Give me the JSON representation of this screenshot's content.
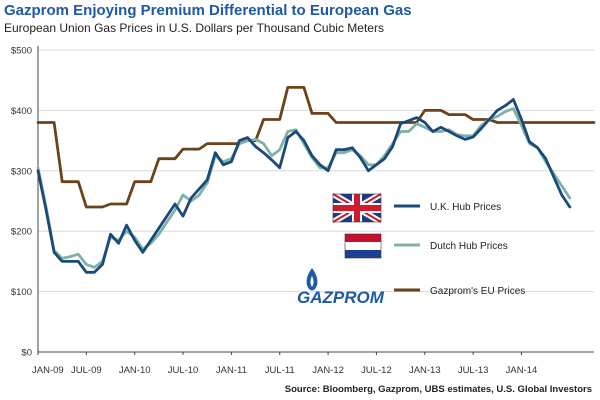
{
  "header": {
    "title": "Gazprom Enjoying Premium Differential to European Gas",
    "subtitle": "European Union Gas Prices in U.S. Dollars per Thousand Cubic Meters"
  },
  "source": "Source: Bloomberg, Gazprom, UBS estimates, U.S. Global Investors",
  "logo": {
    "text": "GAZPROM",
    "icon": "gazprom-flame-icon",
    "color": "#1e5aa3"
  },
  "chart_data": {
    "type": "line",
    "title": "Gazprom Enjoying Premium Differential to European Gas",
    "subtitle": "European Union Gas Prices in U.S. Dollars per Thousand Cubic Meters",
    "xlabel": "",
    "ylabel": "",
    "ylim": [
      0,
      500
    ],
    "y_ticks": [
      0,
      100,
      200,
      300,
      400,
      500
    ],
    "y_tick_labels": [
      "$0",
      "$100",
      "$200",
      "$300",
      "$400",
      "$500"
    ],
    "x_start": "2009-01",
    "x_end": "2014-10",
    "x_tick_labels": [
      "JAN-09",
      "JUL-09",
      "JAN-10",
      "JUL-10",
      "JAN-11",
      "JUL-11",
      "JAN-12",
      "JUL-12",
      "JAN-13",
      "JUL-13",
      "JAN-14"
    ],
    "grid": "horizontal",
    "legend_position": "center-right",
    "months": [
      "2009-01",
      "2009-02",
      "2009-03",
      "2009-04",
      "2009-05",
      "2009-06",
      "2009-07",
      "2009-08",
      "2009-09",
      "2009-10",
      "2009-11",
      "2009-12",
      "2010-01",
      "2010-02",
      "2010-03",
      "2010-04",
      "2010-05",
      "2010-06",
      "2010-07",
      "2010-08",
      "2010-09",
      "2010-10",
      "2010-11",
      "2010-12",
      "2011-01",
      "2011-02",
      "2011-03",
      "2011-04",
      "2011-05",
      "2011-06",
      "2011-07",
      "2011-08",
      "2011-09",
      "2011-10",
      "2011-11",
      "2011-12",
      "2012-01",
      "2012-02",
      "2012-03",
      "2012-04",
      "2012-05",
      "2012-06",
      "2012-07",
      "2012-08",
      "2012-09",
      "2012-10",
      "2012-11",
      "2012-12",
      "2013-01",
      "2013-02",
      "2013-03",
      "2013-04",
      "2013-05",
      "2013-06",
      "2013-07",
      "2013-08",
      "2013-09",
      "2013-10",
      "2013-11",
      "2013-12",
      "2014-01",
      "2014-02",
      "2014-03",
      "2014-04",
      "2014-05",
      "2014-06",
      "2014-07",
      "2014-08",
      "2014-09",
      "2014-10"
    ],
    "series": [
      {
        "name": "U.K. Hub Prices",
        "color": "#1a4a7a",
        "legend_icon": "uk-flag-icon",
        "values": [
          300,
          235,
          165,
          150,
          150,
          150,
          132,
          132,
          145,
          195,
          180,
          210,
          185,
          165,
          185,
          205,
          225,
          245,
          225,
          255,
          270,
          285,
          330,
          310,
          315,
          350,
          355,
          340,
          330,
          318,
          305,
          355,
          365,
          350,
          325,
          310,
          300,
          335,
          335,
          338,
          322,
          300,
          310,
          320,
          340,
          378,
          383,
          388,
          380,
          365,
          372,
          365,
          358,
          352,
          356,
          370,
          385,
          400,
          408,
          418,
          385,
          348,
          338,
          320,
          290,
          260,
          240
        ]
      },
      {
        "name": "Dutch Hub Prices",
        "color": "#7fb2a6",
        "legend_icon": "netherlands-flag-icon",
        "values": [
          305,
          240,
          168,
          155,
          158,
          162,
          145,
          140,
          150,
          190,
          185,
          200,
          190,
          170,
          180,
          195,
          215,
          235,
          260,
          250,
          260,
          280,
          325,
          315,
          320,
          345,
          350,
          352,
          345,
          325,
          335,
          365,
          368,
          345,
          322,
          305,
          305,
          330,
          330,
          335,
          325,
          310,
          310,
          325,
          345,
          365,
          365,
          378,
          372,
          365,
          365,
          368,
          360,
          358,
          358,
          375,
          385,
          390,
          398,
          403,
          375,
          345,
          338,
          315,
          295,
          275,
          255
        ]
      },
      {
        "name": "Gazprom's EU Prices",
        "color": "#6b4219",
        "legend_icon": "line-swatch-icon",
        "values": [
          380,
          380,
          380,
          282,
          282,
          282,
          240,
          240,
          240,
          245,
          245,
          245,
          282,
          282,
          282,
          320,
          320,
          320,
          336,
          336,
          336,
          345,
          345,
          345,
          345,
          345,
          350,
          350,
          385,
          385,
          385,
          438,
          438,
          438,
          395,
          395,
          395,
          380,
          380,
          380,
          380,
          380,
          380,
          380,
          380,
          380,
          380,
          380,
          400,
          400,
          400,
          393,
          393,
          393,
          385,
          385,
          385,
          380,
          380,
          380,
          380,
          380,
          380,
          380,
          380,
          380,
          380,
          380,
          380,
          380
        ]
      }
    ]
  }
}
